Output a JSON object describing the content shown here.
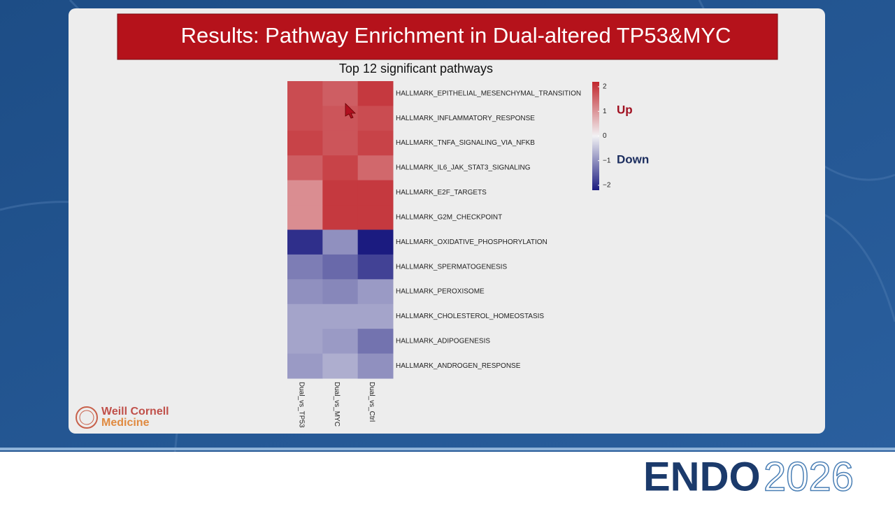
{
  "slide": {
    "title": "Results: Pathway Enrichment in Dual-altered TP53&MYC",
    "logo": {
      "line1": "Weill Cornell",
      "line2": "Medicine"
    },
    "brand": {
      "name": "ENDO",
      "year": "2026"
    }
  },
  "chart_data": {
    "type": "heatmap",
    "title": "Top 12 significant pathways",
    "rows": [
      "HALLMARK_EPITHELIAL_MESENCHYMAL_TRANSITION",
      "HALLMARK_INFLAMMATORY_RESPONSE",
      "HALLMARK_TNFA_SIGNALING_VIA_NFKB",
      "HALLMARK_IL6_JAK_STAT3_SIGNALING",
      "HALLMARK_E2F_TARGETS",
      "HALLMARK_G2M_CHECKPOINT",
      "HALLMARK_OXIDATIVE_PHOSPHORYLATION",
      "HALLMARK_SPERMATOGENESIS",
      "HALLMARK_PEROXISOME",
      "HALLMARK_CHOLESTEROL_HOMEOSTASIS",
      "HALLMARK_ADIPOGENESIS",
      "HALLMARK_ANDROGEN_RESPONSE"
    ],
    "columns": [
      "Dual_vs_TP53",
      "Dual_vs_MYC",
      "Dual_vs_Ctrl"
    ],
    "values": [
      [
        1.8,
        1.6,
        2.0
      ],
      [
        1.8,
        1.7,
        1.8
      ],
      [
        1.9,
        1.7,
        1.9
      ],
      [
        1.6,
        1.9,
        1.5
      ],
      [
        1.1,
        2.0,
        2.0
      ],
      [
        1.1,
        2.0,
        2.0
      ],
      [
        -2.0,
        -1.0,
        -2.2
      ],
      [
        -1.2,
        -1.4,
        -1.8
      ],
      [
        -1.0,
        -1.1,
        -0.9
      ],
      [
        -0.8,
        -0.8,
        -0.8
      ],
      [
        -0.8,
        -0.9,
        -1.3
      ],
      [
        -0.9,
        -0.7,
        -1.0
      ]
    ],
    "zlim": [
      -2.2,
      2.2
    ],
    "zticks": [
      2,
      1,
      0,
      {
        "value": -1,
        "label": "−1"
      },
      {
        "value": -2,
        "label": "−2"
      }
    ],
    "colorscale": [
      "#1b1b80",
      "#f2f2f4",
      "#c1272d"
    ],
    "annotations": {
      "up": "Up",
      "down": "Down"
    }
  }
}
